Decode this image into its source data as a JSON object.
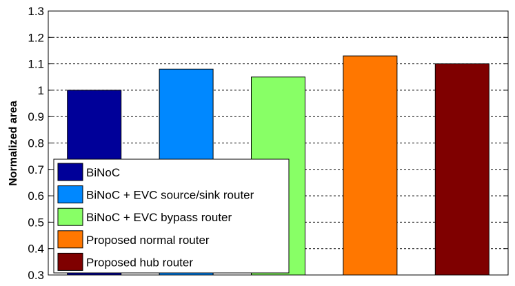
{
  "chart_data": {
    "type": "bar",
    "title": "",
    "xlabel": "",
    "ylabel": "Normalized area",
    "ylim": [
      0.3,
      1.3
    ],
    "yticks": [
      0.3,
      0.4,
      0.5,
      0.6,
      0.7,
      0.8,
      0.9,
      1,
      1.1,
      1.2,
      1.3
    ],
    "ytick_labels": [
      "0.3",
      "0.4",
      "0.5",
      "0.6",
      "0.7",
      "0.8",
      "0.9",
      "1",
      "1.1",
      "1.2",
      "1.3"
    ],
    "grid": "horizontal dashed",
    "legend_position": "bottom-left",
    "series": [
      {
        "name": "BiNoC",
        "value": 1.0,
        "color": "#000099"
      },
      {
        "name": "BiNoC + EVC source/sink router",
        "value": 1.08,
        "color": "#0088ff"
      },
      {
        "name": "BiNoC + EVC bypass router",
        "value": 1.05,
        "color": "#88ff66"
      },
      {
        "name": "Proposed normal router",
        "value": 1.13,
        "color": "#ff7700"
      },
      {
        "name": "Proposed hub router",
        "value": 1.1,
        "color": "#7f0000"
      }
    ]
  }
}
